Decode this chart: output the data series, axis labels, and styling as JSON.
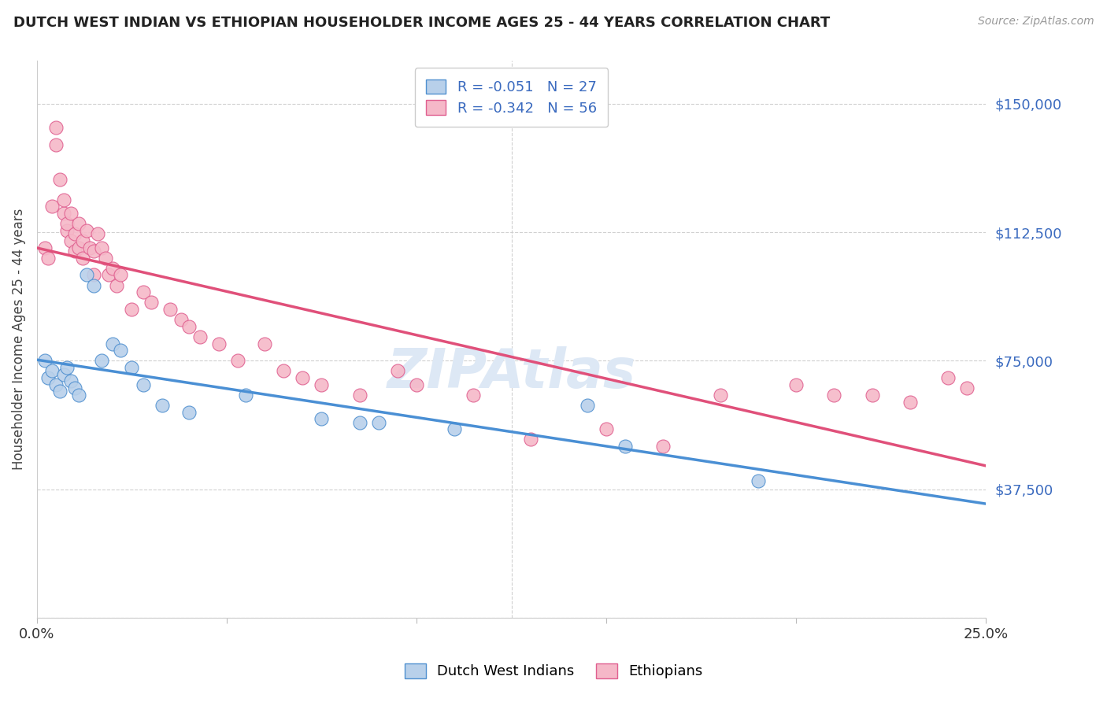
{
  "title": "DUTCH WEST INDIAN VS ETHIOPIAN HOUSEHOLDER INCOME AGES 25 - 44 YEARS CORRELATION CHART",
  "source": "Source: ZipAtlas.com",
  "ylabel": "Householder Income Ages 25 - 44 years",
  "xlim": [
    0.0,
    0.25
  ],
  "ylim": [
    0,
    162500
  ],
  "yticks": [
    0,
    37500,
    75000,
    112500,
    150000
  ],
  "ytick_right_labels": [
    "",
    "$37,500",
    "$75,000",
    "$112,500",
    "$150,000"
  ],
  "xticks": [
    0.0,
    0.05,
    0.1,
    0.15,
    0.2,
    0.25
  ],
  "blue_color": "#b8d0ea",
  "pink_color": "#f5b8c8",
  "blue_line_color": "#4a8fd4",
  "pink_line_color": "#e0507a",
  "blue_edge_color": "#5090d0",
  "pink_edge_color": "#e06090",
  "accent_color": "#3a6abf",
  "dutch_x": [
    0.002,
    0.003,
    0.004,
    0.005,
    0.006,
    0.007,
    0.008,
    0.009,
    0.01,
    0.011,
    0.013,
    0.015,
    0.017,
    0.02,
    0.022,
    0.025,
    0.028,
    0.033,
    0.04,
    0.055,
    0.075,
    0.085,
    0.09,
    0.11,
    0.145,
    0.155,
    0.19
  ],
  "dutch_y": [
    75000,
    70000,
    72000,
    68000,
    66000,
    71000,
    73000,
    69000,
    67000,
    65000,
    100000,
    97000,
    75000,
    80000,
    78000,
    73000,
    68000,
    62000,
    60000,
    65000,
    58000,
    57000,
    57000,
    55000,
    62000,
    50000,
    40000
  ],
  "ethiopian_x": [
    0.002,
    0.003,
    0.004,
    0.005,
    0.005,
    0.006,
    0.007,
    0.007,
    0.008,
    0.008,
    0.009,
    0.009,
    0.01,
    0.01,
    0.011,
    0.011,
    0.012,
    0.012,
    0.013,
    0.014,
    0.015,
    0.015,
    0.016,
    0.017,
    0.018,
    0.019,
    0.02,
    0.021,
    0.022,
    0.025,
    0.028,
    0.03,
    0.035,
    0.038,
    0.04,
    0.043,
    0.048,
    0.053,
    0.06,
    0.065,
    0.07,
    0.075,
    0.085,
    0.095,
    0.1,
    0.115,
    0.13,
    0.15,
    0.165,
    0.18,
    0.2,
    0.21,
    0.22,
    0.23,
    0.24,
    0.245
  ],
  "ethiopian_y": [
    108000,
    105000,
    120000,
    143000,
    138000,
    128000,
    118000,
    122000,
    113000,
    115000,
    110000,
    118000,
    107000,
    112000,
    108000,
    115000,
    110000,
    105000,
    113000,
    108000,
    107000,
    100000,
    112000,
    108000,
    105000,
    100000,
    102000,
    97000,
    100000,
    90000,
    95000,
    92000,
    90000,
    87000,
    85000,
    82000,
    80000,
    75000,
    80000,
    72000,
    70000,
    68000,
    65000,
    72000,
    68000,
    65000,
    52000,
    55000,
    50000,
    65000,
    68000,
    65000,
    65000,
    63000,
    70000,
    67000
  ]
}
